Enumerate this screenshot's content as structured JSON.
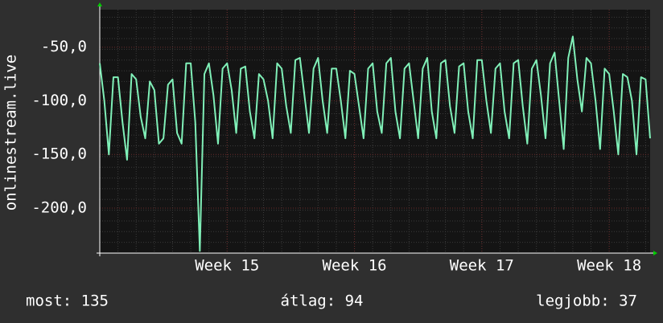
{
  "chart_data": {
    "type": "line",
    "y_label": "onlinestream.live",
    "categories": [
      null,
      null,
      null,
      null,
      null,
      null,
      null,
      null,
      null,
      null,
      null,
      null,
      null,
      null,
      null,
      null,
      null,
      null,
      null,
      null,
      null,
      null,
      null,
      null,
      null,
      null,
      null,
      null,
      "Week 15",
      null,
      null,
      null,
      null,
      null,
      null,
      null,
      null,
      null,
      null,
      null,
      null,
      null,
      null,
      null,
      null,
      null,
      null,
      null,
      null,
      null,
      null,
      null,
      null,
      null,
      null,
      null,
      "Week 16",
      null,
      null,
      null,
      null,
      null,
      null,
      null,
      null,
      null,
      null,
      null,
      null,
      null,
      null,
      null,
      null,
      null,
      null,
      null,
      null,
      null,
      null,
      null,
      null,
      null,
      null,
      null,
      "Week 17",
      null,
      null,
      null,
      null,
      null,
      null,
      null,
      null,
      null,
      null,
      null,
      null,
      null,
      null,
      null,
      null,
      null,
      null,
      null,
      null,
      null,
      null,
      null,
      null,
      null,
      null,
      null,
      "Week 18",
      null,
      null,
      null,
      null,
      null,
      null,
      null,
      null,
      null
    ],
    "series": [
      {
        "name": "onlinestream.live",
        "color": "#80f0b8",
        "values": [
          -65,
          -100,
          -150,
          -78,
          -78,
          -120,
          -155,
          -75,
          -80,
          -115,
          -135,
          -82,
          -90,
          -140,
          -135,
          -85,
          -80,
          -130,
          -140,
          -65,
          -65,
          -120,
          -240,
          -75,
          -65,
          -95,
          -140,
          -70,
          -65,
          -90,
          -130,
          -70,
          -68,
          -110,
          -135,
          -75,
          -80,
          -100,
          -135,
          -65,
          -70,
          -105,
          -130,
          -62,
          -60,
          -95,
          -130,
          -70,
          -60,
          -100,
          -130,
          -70,
          -70,
          -100,
          -135,
          -72,
          -75,
          -105,
          -135,
          -70,
          -65,
          -110,
          -130,
          -65,
          -60,
          -110,
          -135,
          -70,
          -65,
          -100,
          -135,
          -70,
          -60,
          -110,
          -135,
          -65,
          -62,
          -105,
          -130,
          -68,
          -65,
          -110,
          -135,
          -62,
          -62,
          -100,
          -130,
          -70,
          -65,
          -110,
          -135,
          -65,
          -62,
          -105,
          -140,
          -70,
          -62,
          -95,
          -135,
          -65,
          -55,
          -100,
          -145,
          -60,
          -40,
          -80,
          -110,
          -60,
          -65,
          -100,
          -145,
          -70,
          -75,
          -110,
          -150,
          -75,
          -78,
          -100,
          -150,
          -78,
          -80,
          -135
        ]
      }
    ],
    "ylim": [
      -242,
      -15
    ],
    "yticks": [
      {
        "value": -200,
        "label": "-200,0"
      },
      {
        "value": -150,
        "label": "-150,0"
      },
      {
        "value": -100,
        "label": "-100,0"
      },
      {
        "value": -50,
        "label": "-50,0"
      }
    ],
    "grid": true,
    "footer": [
      "most: 135",
      "átlag: 94",
      "legjobb: 37"
    ]
  }
}
